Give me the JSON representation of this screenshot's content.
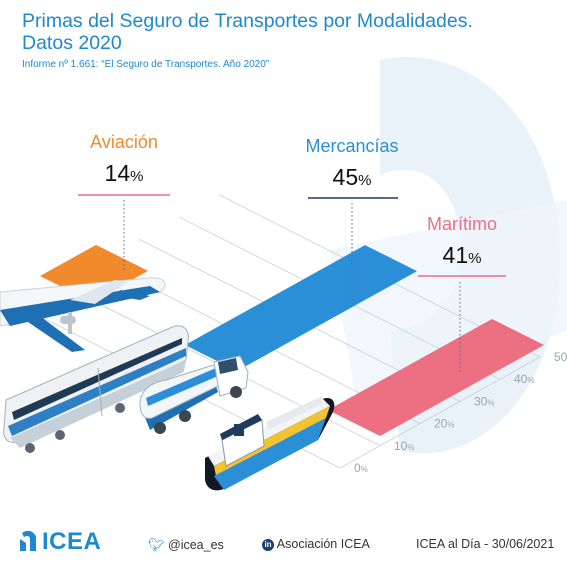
{
  "title_line1": "Primas del Seguro de Transportes por Modalidades.",
  "title_line2": "Datos 2020",
  "subtitle": "Informe nº 1.661: “El Seguro de Transportes. Año 2020”",
  "chart_data": {
    "type": "bar",
    "categories": [
      "Aviación",
      "Mercancías",
      "Marítimo"
    ],
    "values": [
      14,
      45,
      41
    ],
    "value_suffix": "%",
    "ylim": [
      0,
      50
    ],
    "yticks": [
      0,
      10,
      20,
      30,
      40,
      50
    ],
    "tick_suffix": "%",
    "colors": [
      "#f08a2c",
      "#2b8fd8",
      "#ec6f82"
    ]
  },
  "footer": {
    "logo_text": "ICEA",
    "twitter": "@icea_es",
    "linkedin_icon_text": "in",
    "linkedin": "Asociación ICEA",
    "source": "ICEA al Día - 30/06/2021"
  }
}
